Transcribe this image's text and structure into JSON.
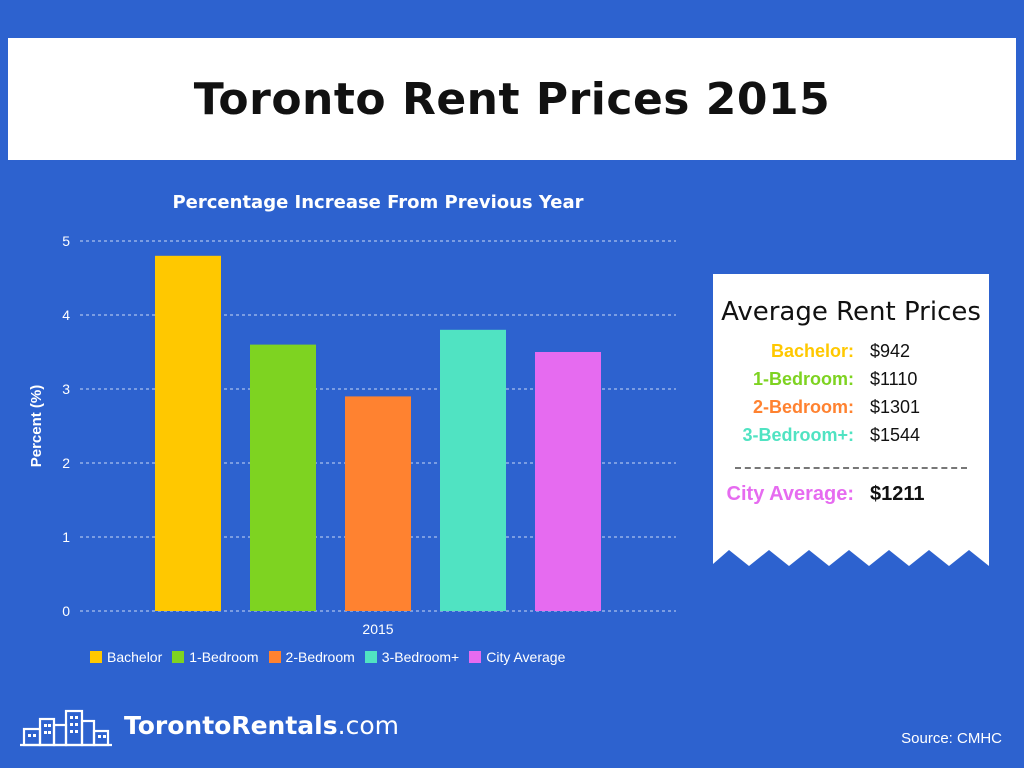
{
  "header": {
    "title": "Toronto Rent Prices 2015"
  },
  "chart_data": {
    "type": "bar",
    "title": "Percentage Increase From Previous Year",
    "xlabel": "",
    "ylabel": "Percent (%)",
    "categories": [
      "2015"
    ],
    "ylim": [
      0,
      5
    ],
    "yticks": [
      "0",
      "1",
      "2",
      "3",
      "4",
      "5"
    ],
    "grid": true,
    "legend_position": "bottom",
    "series": [
      {
        "name": "Bachelor",
        "values": [
          4.8
        ],
        "color": "#ffc800"
      },
      {
        "name": "1-Bedroom",
        "values": [
          3.6
        ],
        "color": "#7ed321"
      },
      {
        "name": "2-Bedroom",
        "values": [
          2.9
        ],
        "color": "#ff8230"
      },
      {
        "name": "3-Bedroom+",
        "values": [
          3.8
        ],
        "color": "#50e3c2"
      },
      {
        "name": "City Average",
        "values": [
          3.5
        ],
        "color": "#e66bf0"
      }
    ]
  },
  "avg_rent": {
    "title": "Average Rent Prices",
    "rows": [
      {
        "label": "Bachelor:",
        "value": "$942",
        "color": "#ffc800"
      },
      {
        "label": "1-Bedroom:",
        "value": "$1110",
        "color": "#7ed321"
      },
      {
        "label": "2-Bedroom:",
        "value": "$1301",
        "color": "#ff8230"
      },
      {
        "label": "3-Bedroom+:",
        "value": "$1544",
        "color": "#50e3c2"
      }
    ],
    "city": {
      "label": "City Average:",
      "value": "$1211",
      "color": "#e66bf0"
    }
  },
  "footer": {
    "logo_bold": "TorontoRentals",
    "logo_light": ".com",
    "source": "Source: CMHC"
  }
}
